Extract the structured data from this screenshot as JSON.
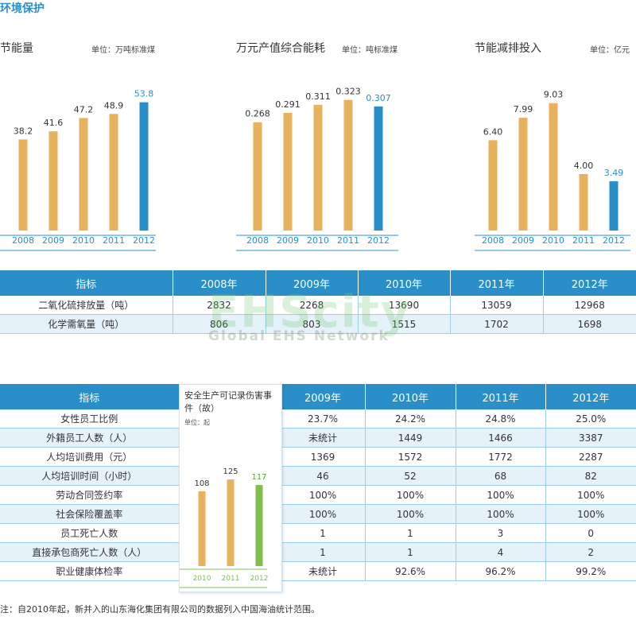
{
  "section_title": "环境保护",
  "chart_data": [
    {
      "type": "bar",
      "title": "节能量",
      "unit": "单位：万吨标准煤",
      "categories": [
        "2008",
        "2009",
        "2010",
        "2011",
        "2012"
      ],
      "values": [
        38.2,
        41.6,
        47.2,
        48.9,
        53.8
      ],
      "value_labels": [
        "38.2",
        "41.6",
        "47.2",
        "48.9",
        "53.8"
      ],
      "ylim": [
        0,
        58
      ],
      "colors": {
        "bar": "#e8b25c",
        "highlight": "#2a8fc8",
        "label": "#333333",
        "highlight_label": "#2a8fc8",
        "axis": "#2a8fc8"
      }
    },
    {
      "type": "bar",
      "title": "万元产值综合能耗",
      "unit": "单位：吨标准煤",
      "categories": [
        "2008",
        "2009",
        "2010",
        "2011",
        "2012"
      ],
      "values": [
        0.268,
        0.291,
        0.311,
        0.323,
        0.307
      ],
      "value_labels": [
        "0.268",
        "0.291",
        "0.311",
        "0.323",
        "0.307"
      ],
      "ylim": [
        0,
        0.35
      ],
      "colors": {
        "bar": "#e8b25c",
        "highlight": "#2a8fc8",
        "label": "#333333",
        "highlight_label": "#2a8fc8",
        "axis": "#2a8fc8"
      }
    },
    {
      "type": "bar",
      "title": "节能减排投入",
      "unit": "单位：亿元",
      "categories": [
        "2008",
        "2009",
        "2010",
        "2011",
        "2012"
      ],
      "values": [
        6.4,
        7.99,
        9.03,
        4.0,
        3.49
      ],
      "value_labels": [
        "6.40",
        "7.99",
        "9.03",
        "4.00",
        "3.49"
      ],
      "ylim": [
        0,
        9.8
      ],
      "colors": {
        "bar": "#e8b25c",
        "highlight": "#2a8fc8",
        "label": "#333333",
        "highlight_label": "#2a8fc8",
        "axis": "#2a8fc8"
      }
    },
    {
      "type": "bar",
      "title": "安全生产可记录伤害事件（故）",
      "unit": "单位：起",
      "categories": [
        "2010",
        "2011",
        "2012"
      ],
      "values": [
        108,
        125,
        117
      ],
      "value_labels": [
        "108",
        "125",
        "117"
      ],
      "ylim": [
        0,
        140
      ],
      "colors": {
        "bar": "#e8b25c",
        "highlight": "#7fbf4d",
        "label": "#333333",
        "highlight_label": "#5aa832",
        "axis": "#7fbf4d"
      }
    }
  ],
  "env_table": {
    "headers": [
      "指标",
      "2008年",
      "2009年",
      "2010年",
      "2011年",
      "2012年"
    ],
    "rows": [
      {
        "label": "二氧化硫排放量（吨）",
        "values": [
          "2832",
          "2268",
          "13690",
          "13059",
          "12968"
        ]
      },
      {
        "label": "化学需氧量（吨）",
        "values": [
          "806",
          "803",
          "1515",
          "1702",
          "1698"
        ]
      }
    ]
  },
  "watermark": {
    "big": "EHScity",
    "small": "Global EHS Network"
  },
  "hr_table": {
    "headers": [
      "指标",
      "",
      "2009年",
      "2010年",
      "2011年",
      "2012年"
    ],
    "rows": [
      {
        "label": "女性员工比例",
        "values": [
          "",
          "23.7%",
          "24.2%",
          "24.8%",
          "25.0%"
        ]
      },
      {
        "label": "外籍员工人数（人）",
        "values": [
          "",
          "未统计",
          "1449",
          "1466",
          "3387"
        ]
      },
      {
        "label": "人均培训费用（元）",
        "values": [
          "",
          "1369",
          "1572",
          "1772",
          "2287"
        ]
      },
      {
        "label": "人均培训时间（小时）",
        "values": [
          "",
          "46",
          "52",
          "68",
          "82"
        ]
      },
      {
        "label": "劳动合同签约率",
        "values": [
          "",
          "100%",
          "100%",
          "100%",
          "100%"
        ]
      },
      {
        "label": "社会保险覆盖率",
        "values": [
          "",
          "100%",
          "100%",
          "100%",
          "100%"
        ]
      },
      {
        "label": "员工死亡人数",
        "values": [
          "",
          "1",
          "1",
          "3",
          "0"
        ]
      },
      {
        "label": "直接承包商死亡人数（人）",
        "values": [
          "",
          "1",
          "1",
          "4",
          "2"
        ]
      },
      {
        "label": "职业健康体检率",
        "values": [
          "",
          "未统计",
          "92.6%",
          "96.2%",
          "99.2%"
        ]
      }
    ]
  },
  "note": "注：自2010年起，新并入的山东海化集团有限公司的数据列入中国海油统计范围。"
}
